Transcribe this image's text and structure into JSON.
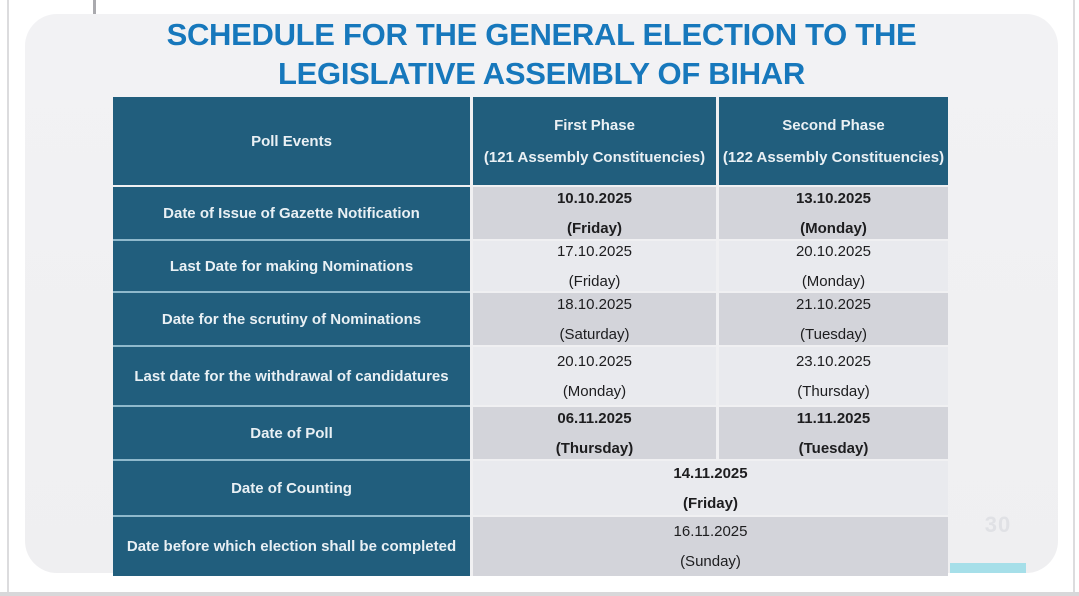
{
  "title": {
    "line1": "SCHEDULE FOR THE GENERAL ELECTION TO THE",
    "line2": "LEGISLATIVE ASSEMBLY OF BIHAR"
  },
  "page": {
    "number": "30"
  },
  "colors": {
    "title_blue": "#1778bc",
    "header_teal": "#215e7d",
    "row_dark": "#d3d4da",
    "row_light": "#e9eaee",
    "slide_bg": "#f0f0f2",
    "accent_cyan": "#a6dfe9"
  },
  "table": {
    "columns": [
      {
        "title": "Poll Events",
        "subtitle": ""
      },
      {
        "title": "First Phase",
        "subtitle": "(121 Assembly Constituencies)"
      },
      {
        "title": "Second Phase",
        "subtitle": "(122 Assembly Constituencies)"
      }
    ],
    "rows": [
      {
        "event": "Date of Issue of Gazette Notification",
        "phase1": {
          "date": "10.10.2025",
          "day": "(Friday)"
        },
        "phase2": {
          "date": "13.10.2025",
          "day": "(Monday)"
        }
      },
      {
        "event": "Last Date for making Nominations",
        "phase1": {
          "date": "17.10.2025",
          "day": "(Friday)"
        },
        "phase2": {
          "date": "20.10.2025",
          "day": "(Monday)"
        }
      },
      {
        "event": "Date for the scrutiny of Nominations",
        "phase1": {
          "date": "18.10.2025",
          "day": "(Saturday)"
        },
        "phase2": {
          "date": "21.10.2025",
          "day": "(Tuesday)"
        }
      },
      {
        "event": "Last date for the withdrawal of candidatures",
        "phase1": {
          "date": "20.10.2025",
          "day": "(Monday)"
        },
        "phase2": {
          "date": "23.10.2025",
          "day": "(Thursday)"
        }
      },
      {
        "event": "Date of Poll",
        "phase1": {
          "date": "06.11.2025",
          "day": "(Thursday)"
        },
        "phase2": {
          "date": "11.11.2025",
          "day": "(Tuesday)"
        }
      },
      {
        "event": "Date of Counting",
        "combined": {
          "date": "14.11.2025",
          "day": "(Friday)"
        }
      },
      {
        "event": "Date before which election shall be completed",
        "combined": {
          "date": "16.11.2025",
          "day": "(Sunday)"
        }
      }
    ]
  }
}
